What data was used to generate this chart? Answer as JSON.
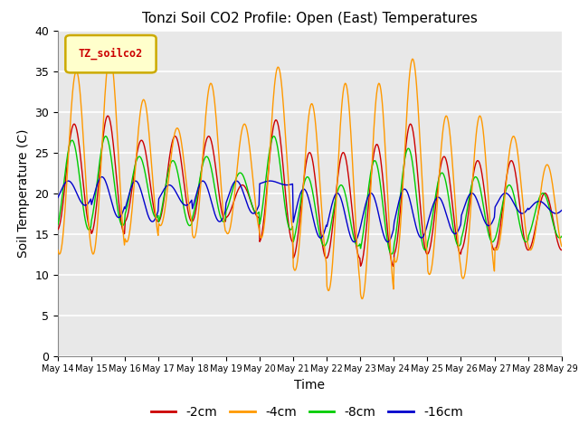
{
  "title": "Tonzi Soil CO2 Profile: Open (East) Temperatures",
  "xlabel": "Time",
  "ylabel": "Soil Temperature (C)",
  "ylim": [
    0,
    40
  ],
  "yticks": [
    0,
    5,
    10,
    15,
    20,
    25,
    30,
    35,
    40
  ],
  "xtick_labels": [
    "May 14",
    "May 15",
    "May 16",
    "May 17",
    "May 18",
    "May 19",
    "May 20",
    "May 21",
    "May 22",
    "May 23",
    "May 24",
    "May 25",
    "May 26",
    "May 27",
    "May 28",
    "May 29"
  ],
  "legend_label": "TZ_soilco2",
  "legend_bg": "#ffffcc",
  "legend_border": "#ccaa00",
  "colors": {
    "2cm": "#cc0000",
    "4cm": "#ff9900",
    "8cm": "#00cc00",
    "16cm": "#0000cc"
  },
  "line_labels": [
    "-2cm",
    "-4cm",
    "-8cm",
    "-16cm"
  ],
  "background_color": "#e8e8e8",
  "fig_background": "#ffffff",
  "grid_color": "#ffffff"
}
